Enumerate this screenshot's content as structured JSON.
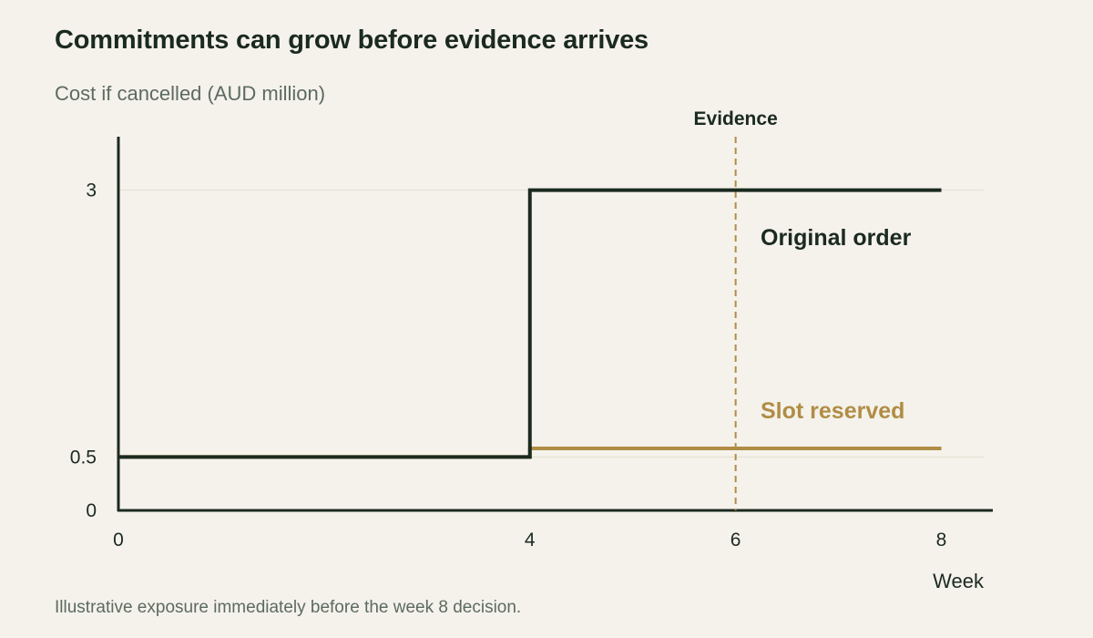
{
  "chart_data": {
    "type": "line",
    "title": "Commitments can grow before evidence arrives",
    "subtitle": "Cost if cancelled (AUD million)",
    "xlabel": "Week",
    "ylabel": "",
    "x_ticks": [
      0,
      4,
      6,
      8
    ],
    "y_ticks": [
      0,
      0.5,
      3
    ],
    "y_tick_labels": [
      "0",
      "0.5",
      "3"
    ],
    "xlim": [
      0,
      8.5
    ],
    "ylim": [
      0,
      3.5
    ],
    "step": "post",
    "grid": "horizontal",
    "series": [
      {
        "name": "Original order",
        "color": "#1b2a1f",
        "x": [
          0,
          4,
          8
        ],
        "y": [
          0.5,
          3,
          3
        ]
      },
      {
        "name": "Slot reserved",
        "color": "#b08d45",
        "x": [
          0,
          4,
          8
        ],
        "y": [
          0.5,
          0.58,
          0.58
        ]
      }
    ],
    "annotations": [
      {
        "type": "vline",
        "x": 6,
        "label": "Evidence",
        "color": "#b08d45",
        "style": "dashed"
      }
    ]
  },
  "footnote": "Illustrative exposure immediately before the week 8 decision."
}
